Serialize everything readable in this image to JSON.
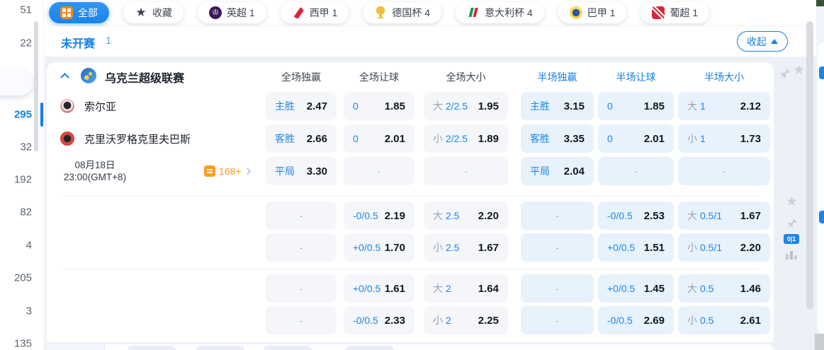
{
  "colors": {
    "accent": "#157fe8",
    "tab_active_bg": "#1b84ec",
    "markets_orange": "#ff9b23",
    "odds_value": "#14181f",
    "full_cell_bg": "#f4f6f9",
    "half_cell_bg": "#e8f2fc"
  },
  "sidebar": {
    "items": [
      {
        "type": "count",
        "value": "51"
      },
      {
        "type": "count",
        "value": "22"
      },
      {
        "type": "pill"
      },
      {
        "type": "count",
        "value": "295",
        "active": true
      },
      {
        "type": "count",
        "value": "32"
      },
      {
        "type": "count",
        "value": "192"
      },
      {
        "type": "count",
        "value": "82"
      },
      {
        "type": "count",
        "value": "4"
      },
      {
        "type": "count",
        "value": "205"
      },
      {
        "type": "count",
        "value": "3"
      },
      {
        "type": "count",
        "value": "135"
      }
    ]
  },
  "tabs": [
    {
      "label": "全部",
      "icon": "all-leagues",
      "active": true
    },
    {
      "label": "收藏",
      "icon": "favorites-star",
      "glyph": "★"
    },
    {
      "label": "英超 1",
      "icon": "premier-league",
      "glyph": "♔"
    },
    {
      "label": "西甲 1",
      "icon": "laliga"
    },
    {
      "label": "德国杯 4",
      "icon": "german-cup"
    },
    {
      "label": "意大利杯 4",
      "icon": "italy-cup"
    },
    {
      "label": "巴甲 1",
      "icon": "brazil-serie-a"
    },
    {
      "label": "葡超 1",
      "icon": "portugal-league"
    }
  ],
  "section": {
    "status": "未开赛",
    "count": "1",
    "collapse": "收起"
  },
  "league": {
    "name": "乌克兰超级联赛",
    "columns": [
      {
        "label": "全场独赢",
        "half": false
      },
      {
        "label": "全场让球",
        "half": false
      },
      {
        "label": "全场大小",
        "half": false
      },
      {
        "label": "半场独赢",
        "half": true
      },
      {
        "label": "半场让球",
        "half": true
      },
      {
        "label": "半场大小",
        "half": true
      }
    ]
  },
  "match": {
    "home": "索尔亚",
    "away": "克里沃罗格克里夫巴斯",
    "date": "08月18日",
    "time": "23:00(GMT+8)",
    "markets": "168+"
  },
  "odds": {
    "dash": "-",
    "rows": [
      [
        {
          "b": "主胜",
          "v": "2.47"
        },
        {
          "b": "0",
          "v": "1.85"
        },
        {
          "g": "大",
          "b": "2/2.5",
          "v": "1.95"
        },
        {
          "b": "主胜",
          "v": "3.15"
        },
        {
          "b": "0",
          "v": "1.85"
        },
        {
          "g": "大",
          "b": "1",
          "v": "2.12"
        }
      ],
      [
        {
          "b": "客胜",
          "v": "2.66"
        },
        {
          "b": "0",
          "v": "2.01"
        },
        {
          "g": "小",
          "b": "2/2.5",
          "v": "1.89"
        },
        {
          "b": "客胜",
          "v": "3.35"
        },
        {
          "b": "0",
          "v": "2.01"
        },
        {
          "g": "小",
          "b": "1",
          "v": "1.73"
        }
      ],
      [
        {
          "b": "平局",
          "v": "3.30"
        },
        null,
        null,
        {
          "b": "平局",
          "v": "2.04"
        },
        null,
        null
      ],
      [
        null,
        {
          "b": "-0/0.5",
          "v": "2.19"
        },
        {
          "g": "大",
          "b": "2.5",
          "v": "2.20"
        },
        null,
        {
          "b": "-0/0.5",
          "v": "2.53"
        },
        {
          "g": "大",
          "b": "0.5/1",
          "v": "1.67"
        }
      ],
      [
        null,
        {
          "b": "+0/0.5",
          "v": "1.70"
        },
        {
          "g": "小",
          "b": "2.5",
          "v": "1.67"
        },
        null,
        {
          "b": "+0/0.5",
          "v": "1.51"
        },
        {
          "g": "小",
          "b": "0.5/1",
          "v": "2.20"
        }
      ],
      [
        null,
        {
          "b": "+0/0.5",
          "v": "1.61"
        },
        {
          "g": "大",
          "b": "2",
          "v": "1.64"
        },
        null,
        {
          "b": "+0/0.5",
          "v": "1.45"
        },
        {
          "g": "大",
          "b": "0.5",
          "v": "1.46"
        }
      ],
      [
        null,
        {
          "b": "-0/0.5",
          "v": "2.33"
        },
        {
          "g": "小",
          "b": "2",
          "v": "2.25"
        },
        null,
        {
          "b": "-0/0.5",
          "v": "2.69"
        },
        {
          "g": "小",
          "b": "0.5",
          "v": "2.61"
        }
      ]
    ]
  },
  "floating": {
    "badge": "0|1"
  }
}
